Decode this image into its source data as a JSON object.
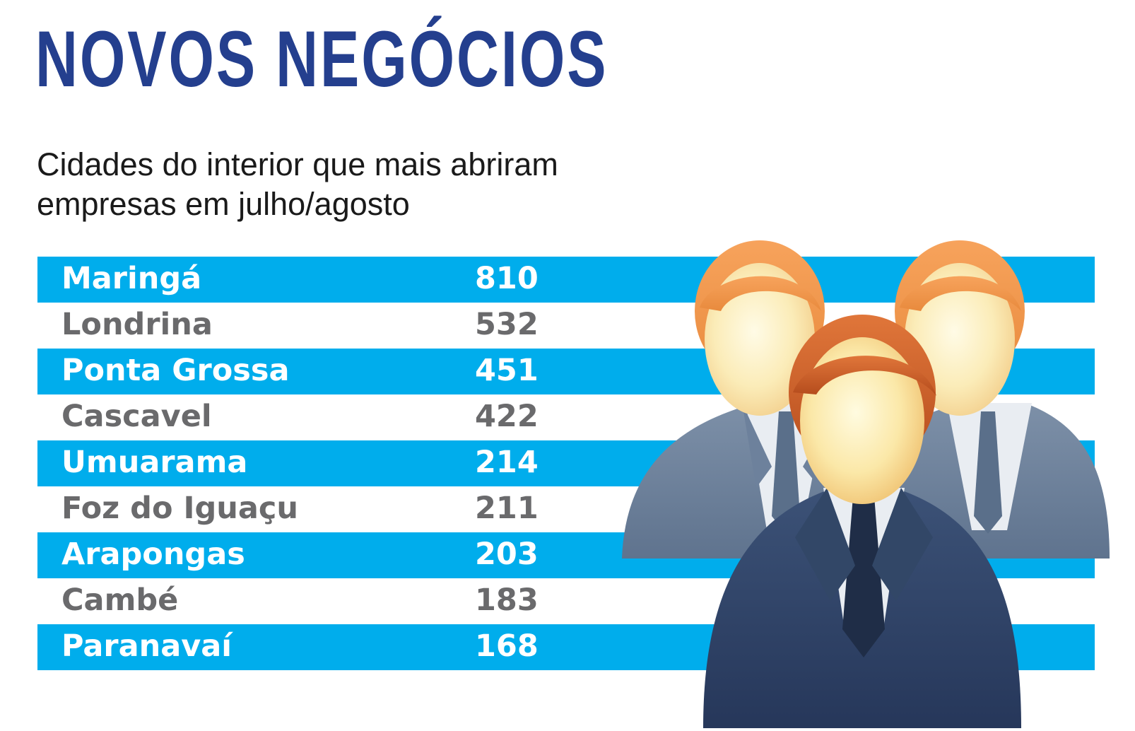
{
  "header": {
    "title": "NOVOS NEGÓCIOS",
    "subtitle_line1": "Cidades do interior que mais abriram",
    "subtitle_line2": "empresas em julho/agosto"
  },
  "colors": {
    "title": "#243f8e",
    "stripe": "#00adec",
    "stripe_text": "#ffffff",
    "plain_text": "#6a6a6c"
  },
  "illustration": {
    "icon": "business-people-group-icon"
  },
  "chart_data": {
    "type": "table",
    "title": "NOVOS NEGÓCIOS",
    "subtitle": "Cidades do interior que mais abriram empresas em julho/agosto",
    "categories": [
      "Maringá",
      "Londrina",
      "Ponta Grossa",
      "Cascavel",
      "Umuarama",
      "Foz do Iguaçu",
      "Arapongas",
      "Cambé",
      "Paranavaí"
    ],
    "values": [
      810,
      532,
      451,
      422,
      214,
      211,
      203,
      183,
      168
    ],
    "rows": [
      {
        "city": "Maringá",
        "value": "810"
      },
      {
        "city": "Londrina",
        "value": "532"
      },
      {
        "city": "Ponta Grossa",
        "value": "451"
      },
      {
        "city": "Cascavel",
        "value": "422"
      },
      {
        "city": "Umuarama",
        "value": "214"
      },
      {
        "city": "Foz do Iguaçu",
        "value": "211"
      },
      {
        "city": "Arapongas",
        "value": "203"
      },
      {
        "city": "Cambé",
        "value": "183"
      },
      {
        "city": "Paranavaí",
        "value": "168"
      }
    ]
  }
}
